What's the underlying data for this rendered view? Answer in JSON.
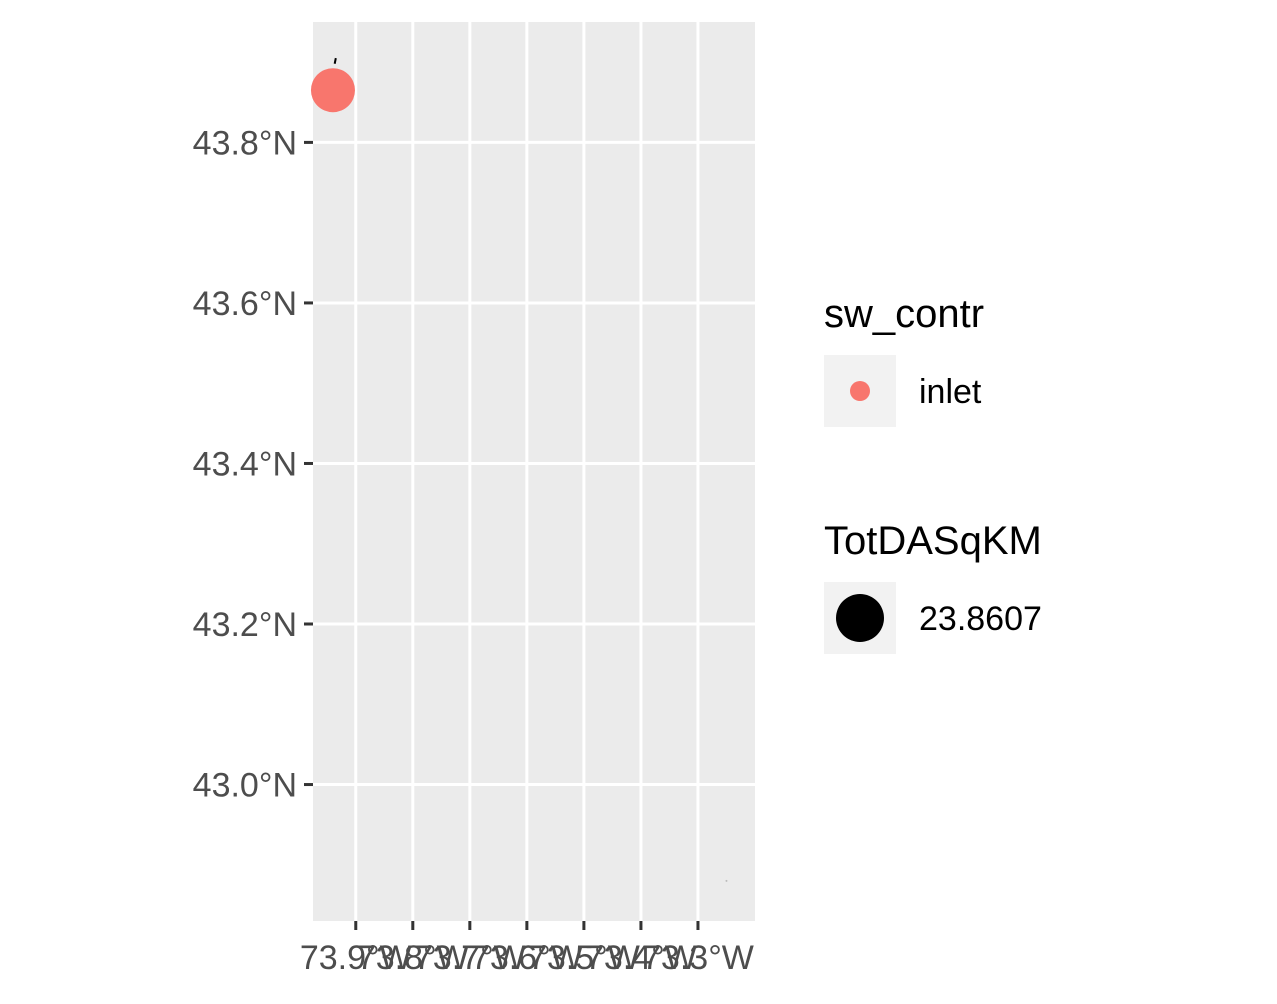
{
  "chart_data": {
    "type": "scatter",
    "title": "",
    "xlabel": "",
    "ylabel": "",
    "x_ticks": [
      {
        "value": -73.9,
        "label": "73.9°W"
      },
      {
        "value": -73.8,
        "label": "73.8°W"
      },
      {
        "value": -73.7,
        "label": "73.7°W"
      },
      {
        "value": -73.6,
        "label": "73.6°W"
      },
      {
        "value": -73.5,
        "label": "73.5°W"
      },
      {
        "value": -73.4,
        "label": "73.4°W"
      },
      {
        "value": -73.3,
        "label": "73.3°W"
      }
    ],
    "y_ticks": [
      {
        "value": 43.0,
        "label": "43.0°N"
      },
      {
        "value": 43.2,
        "label": "43.2°N"
      },
      {
        "value": 43.4,
        "label": "43.4°N"
      },
      {
        "value": 43.6,
        "label": "43.6°N"
      },
      {
        "value": 43.8,
        "label": "43.8°N"
      }
    ],
    "xlim": [
      -73.975,
      -73.2
    ],
    "ylim": [
      42.83,
      43.95
    ],
    "grid": true,
    "panel_background": "#EBEBEB",
    "grid_color": "#FFFFFF",
    "points": [
      {
        "lon": -73.94,
        "lat": 43.865,
        "sw_contr": "inlet",
        "TotDASqKM": 23.8607,
        "color": "#F8766D"
      }
    ],
    "features": [
      {
        "type": "line",
        "color": "#000000",
        "coords": [
          [
            -73.937,
            43.898
          ],
          [
            -73.935,
            43.905
          ]
        ]
      },
      {
        "type": "point",
        "color": "#BBBBBB",
        "lon": -73.25,
        "lat": 42.88
      }
    ],
    "legend_position": "right",
    "legends": [
      {
        "title": "sw_contr",
        "kind": "color",
        "entries": [
          {
            "label": "inlet",
            "color": "#F8766D"
          }
        ]
      },
      {
        "title": "TotDASqKM",
        "kind": "size",
        "entries": [
          {
            "label": "23.8607",
            "color": "#000000"
          }
        ]
      }
    ]
  }
}
